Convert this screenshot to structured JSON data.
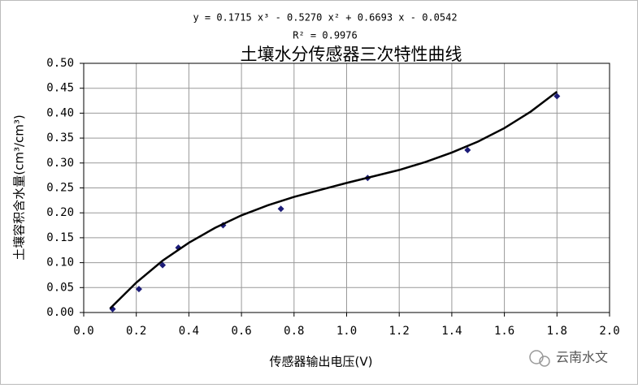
{
  "chart_data": {
    "type": "scatter",
    "title": "土壤水分传感器三次特性曲线",
    "equation": "y = 0.1715 x³ - 0.5270 x² + 0.6693 x - 0.0542",
    "r_squared": "R² = 0.9976",
    "x_label": "传感器输出电压(V)",
    "y_label": "土壤容积含水量(cm³/cm³)",
    "xlim": [
      0,
      2
    ],
    "ylim": [
      0,
      0.5
    ],
    "xticks": [
      {
        "value": 0,
        "label": "0.0"
      },
      {
        "value": 0.2,
        "label": "0.2"
      },
      {
        "value": 0.4,
        "label": "0.4"
      },
      {
        "value": 0.6,
        "label": "0.6"
      },
      {
        "value": 0.8,
        "label": "0.8"
      },
      {
        "value": 1,
        "label": "1.0"
      },
      {
        "value": 1.2,
        "label": "1.2"
      },
      {
        "value": 1.4,
        "label": "1.4"
      },
      {
        "value": 1.6,
        "label": "1.6"
      },
      {
        "value": 1.8,
        "label": "1.8"
      },
      {
        "value": 2,
        "label": "2.0"
      }
    ],
    "yticks": [
      {
        "value": 0,
        "label": "0.00"
      },
      {
        "value": 0.05,
        "label": "0.05"
      },
      {
        "value": 0.1,
        "label": "0.10"
      },
      {
        "value": 0.15,
        "label": "0.15"
      },
      {
        "value": 0.2,
        "label": "0.20"
      },
      {
        "value": 0.25,
        "label": "0.25"
      },
      {
        "value": 0.3,
        "label": "0.30"
      },
      {
        "value": 0.35,
        "label": "0.35"
      },
      {
        "value": 0.4,
        "label": "0.40"
      },
      {
        "value": 0.45,
        "label": "0.45"
      },
      {
        "value": 0.5,
        "label": "0.50"
      }
    ],
    "grid": true,
    "series": [
      {
        "type": "scatter",
        "color": "#1c1c78",
        "x": [
          0.11,
          0.21,
          0.3,
          0.36,
          0.53,
          0.75,
          1.08,
          1.46,
          1.8
        ],
        "values": [
          0.007,
          0.047,
          0.095,
          0.13,
          0.175,
          0.208,
          0.27,
          0.326,
          0.434
        ]
      },
      {
        "type": "line",
        "color": "#000000",
        "x": [
          0.1,
          0.2,
          0.3,
          0.4,
          0.5,
          0.6,
          0.7,
          0.8,
          0.9,
          1,
          1.1,
          1.2,
          1.3,
          1.4,
          1.5,
          1.6,
          1.7,
          1.8
        ],
        "values": [
          0.008,
          0.06,
          0.104,
          0.14,
          0.17,
          0.195,
          0.215,
          0.232,
          0.246,
          0.26,
          0.273,
          0.286,
          0.302,
          0.321,
          0.343,
          0.37,
          0.403,
          0.443
        ]
      }
    ]
  },
  "watermark": "云南水文"
}
